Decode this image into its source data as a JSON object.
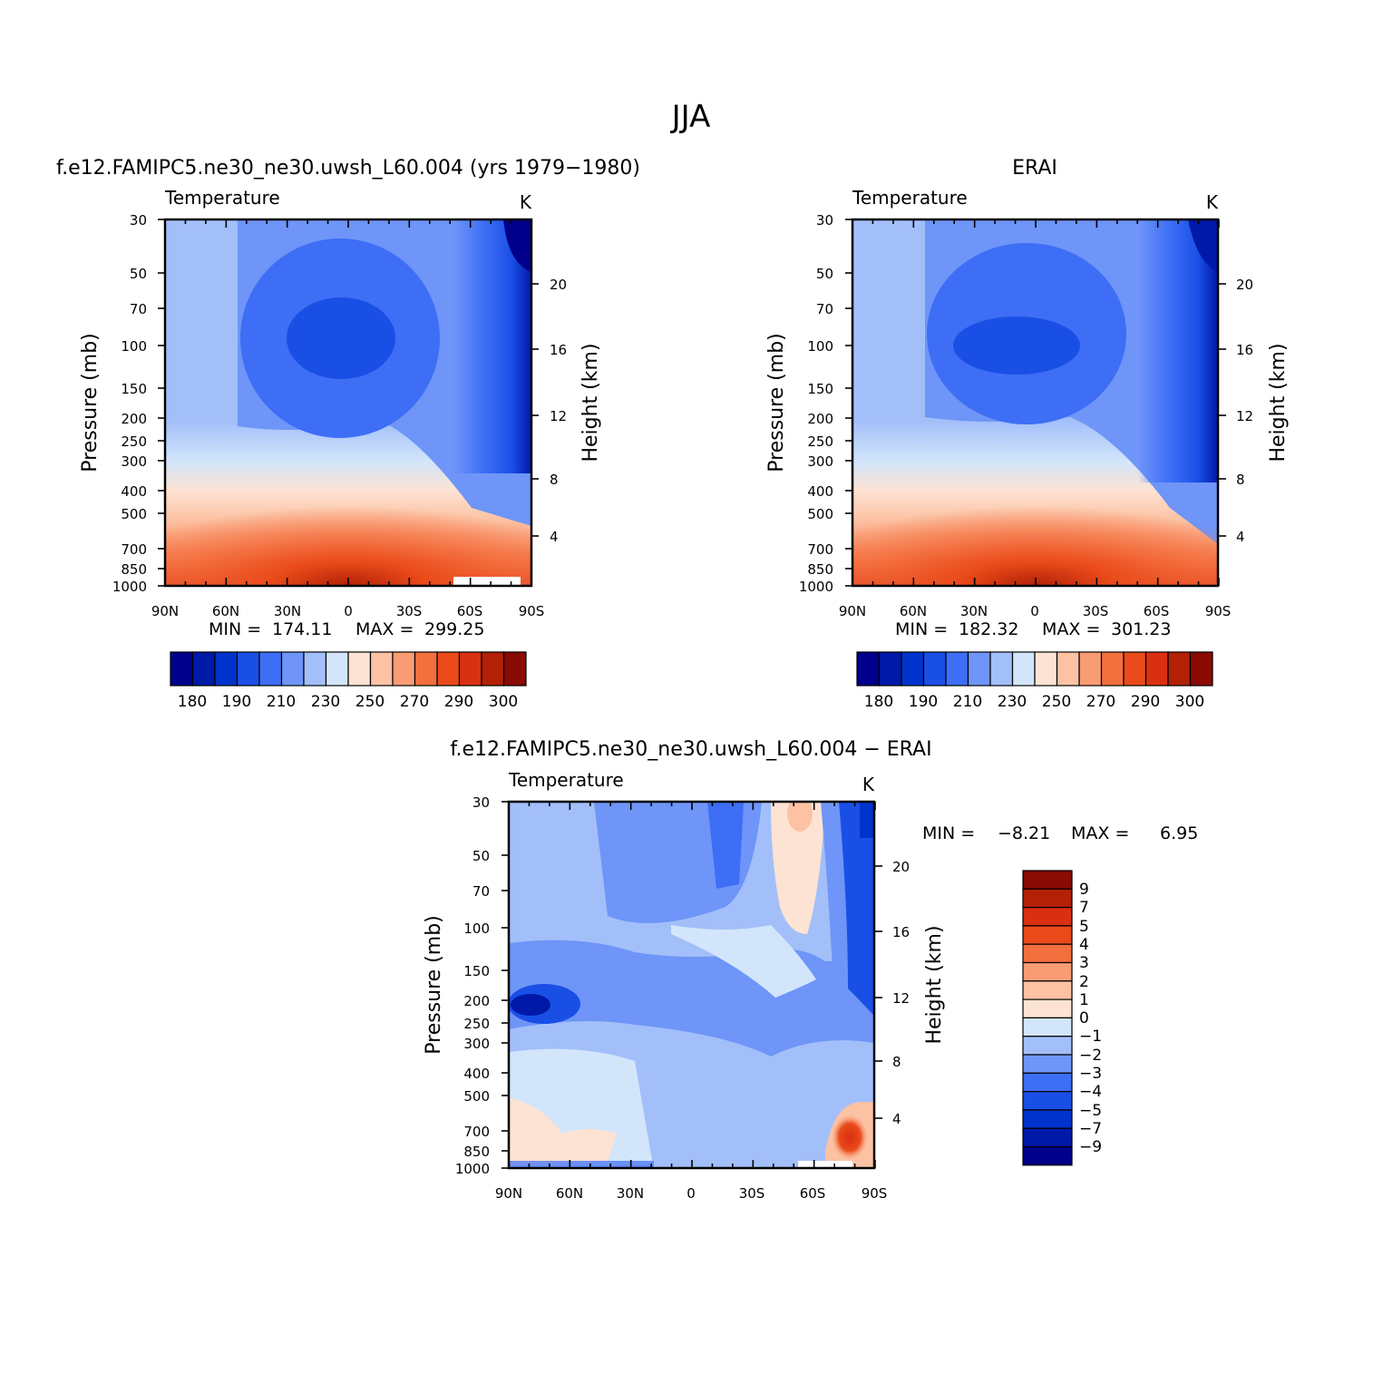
{
  "page_title": "JJA",
  "chart_data": [
    {
      "type": "heatmap",
      "title": "f.e12.FAMIPC5.ne30_ne30.uwsh_L60.004 (yrs 1979-1980)",
      "subtitle_left": "Temperature",
      "subtitle_right": "K",
      "ylabel": "Pressure (mb)",
      "ylabel_right": "Height (km)",
      "x_ticks": [
        "90N",
        "60N",
        "30N",
        "0",
        "30S",
        "60S",
        "90S"
      ],
      "y_ticks": [
        "30",
        "50",
        "70",
        "100",
        "150",
        "200",
        "250",
        "300",
        "400",
        "500",
        "700",
        "850",
        "1000"
      ],
      "y_ticks_right": [
        "4",
        "8",
        "12",
        "16",
        "20"
      ],
      "stats": {
        "min_label": "MIN =",
        "min": "174.11",
        "max_label": "MAX =",
        "max": "299.25"
      },
      "colorbar": {
        "orientation": "horizontal",
        "tick_labels": [
          "180",
          "190",
          "210",
          "230",
          "250",
          "270",
          "290",
          "300"
        ]
      },
      "ylim": [
        1000,
        30
      ],
      "xlim": [
        "90N",
        "90S"
      ]
    },
    {
      "type": "heatmap",
      "title": "ERAI",
      "subtitle_left": "Temperature",
      "subtitle_right": "K",
      "ylabel": "Pressure (mb)",
      "ylabel_right": "Height (km)",
      "x_ticks": [
        "90N",
        "60N",
        "30N",
        "0",
        "30S",
        "60S",
        "90S"
      ],
      "y_ticks": [
        "30",
        "50",
        "70",
        "100",
        "150",
        "200",
        "250",
        "300",
        "400",
        "500",
        "700",
        "850",
        "1000"
      ],
      "y_ticks_right": [
        "4",
        "8",
        "12",
        "16",
        "20"
      ],
      "stats": {
        "min_label": "MIN =",
        "min": "182.32",
        "max_label": "MAX =",
        "max": "301.23"
      },
      "colorbar": {
        "orientation": "horizontal",
        "tick_labels": [
          "180",
          "190",
          "210",
          "230",
          "250",
          "270",
          "290",
          "300"
        ]
      },
      "ylim": [
        1000,
        30
      ],
      "xlim": [
        "90N",
        "90S"
      ]
    },
    {
      "type": "heatmap",
      "title": "f.e12.FAMIPC5.ne30_ne30.uwsh_L60.004 - ERAI",
      "subtitle_left": "Temperature",
      "subtitle_right": "K",
      "ylabel": "Pressure (mb)",
      "ylabel_right": "Height (km)",
      "x_ticks": [
        "90N",
        "60N",
        "30N",
        "0",
        "30S",
        "60S",
        "90S"
      ],
      "y_ticks": [
        "30",
        "50",
        "70",
        "100",
        "150",
        "200",
        "250",
        "300",
        "400",
        "500",
        "700",
        "850",
        "1000"
      ],
      "y_ticks_right": [
        "4",
        "8",
        "12",
        "16",
        "20"
      ],
      "stats": {
        "min_label": "MIN =",
        "min": "-8.21",
        "max_label": "MAX =",
        "max": "6.95"
      },
      "colorbar": {
        "orientation": "vertical",
        "tick_labels": [
          "9",
          "7",
          "5",
          "4",
          "3",
          "2",
          "1",
          "0",
          "-1",
          "-2",
          "-3",
          "-4",
          "-5",
          "-7",
          "-9"
        ]
      },
      "ylim": [
        1000,
        30
      ],
      "xlim": [
        "90N",
        "90S"
      ]
    }
  ],
  "palette": [
    "#00008a",
    "#0019a8",
    "#0033cc",
    "#1a4fe6",
    "#3d6ef5",
    "#6e95f7",
    "#a3bffa",
    "#d2e5fb",
    "#fde3d3",
    "#fcc2a3",
    "#f99c74",
    "#f46f3e",
    "#ea4a1a",
    "#d93011",
    "#b22106",
    "#8a0a04"
  ]
}
